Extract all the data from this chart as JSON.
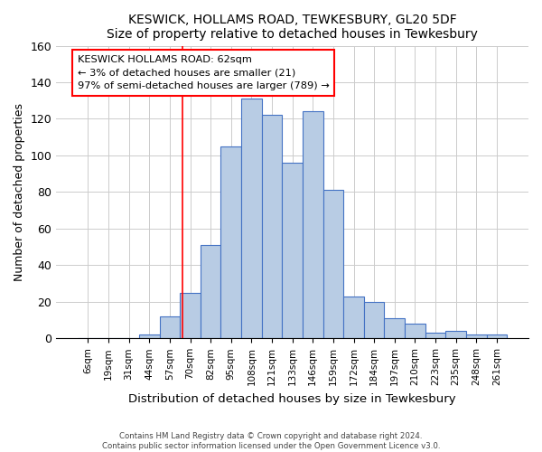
{
  "title": "KESWICK, HOLLAMS ROAD, TEWKESBURY, GL20 5DF",
  "subtitle": "Size of property relative to detached houses in Tewkesbury",
  "xlabel": "Distribution of detached houses by size in Tewkesbury",
  "ylabel": "Number of detached properties",
  "footnote1": "Contains HM Land Registry data © Crown copyright and database right 2024.",
  "footnote2": "Contains public sector information licensed under the Open Government Licence v3.0.",
  "bar_labels": [
    "6sqm",
    "19sqm",
    "31sqm",
    "44sqm",
    "57sqm",
    "70sqm",
    "82sqm",
    "95sqm",
    "108sqm",
    "121sqm",
    "133sqm",
    "146sqm",
    "159sqm",
    "172sqm",
    "184sqm",
    "197sqm",
    "210sqm",
    "223sqm",
    "235sqm",
    "248sqm",
    "261sqm"
  ],
  "bar_values": [
    0,
    0,
    0,
    2,
    12,
    25,
    51,
    105,
    131,
    122,
    96,
    124,
    81,
    23,
    20,
    11,
    8,
    3,
    4,
    2,
    2
  ],
  "bar_color": "#b8cce4",
  "bar_edge_color": "#4472c4",
  "ylim": [
    0,
    160
  ],
  "yticks": [
    0,
    20,
    40,
    60,
    80,
    100,
    120,
    140,
    160
  ],
  "annotation_line_bin_index": 4.62,
  "annotation_box_text": "KESWICK HOLLAMS ROAD: 62sqm\n← 3% of detached houses are smaller (21)\n97% of semi-detached houses are larger (789) →",
  "background_color": "#ffffff",
  "grid_color": "#cccccc"
}
